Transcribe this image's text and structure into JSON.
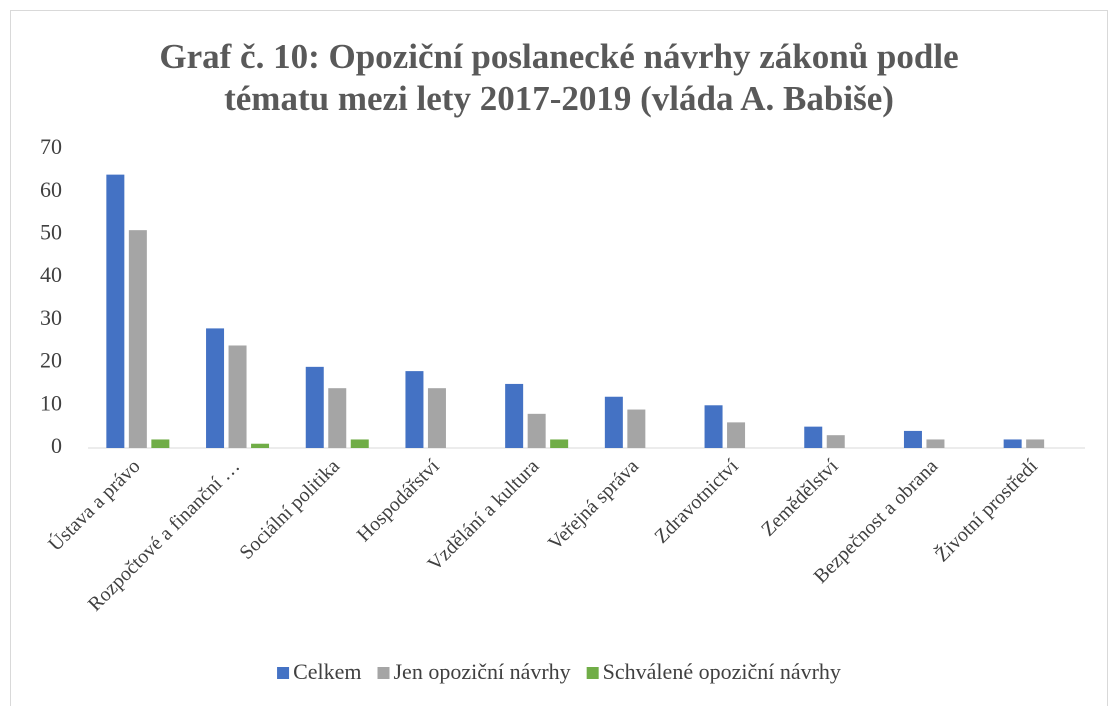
{
  "chart_data": {
    "type": "bar",
    "title": "Graf č. 10: Opoziční poslanecké návrhy zákonů podle tématu mezi lety 2017-2019 (vláda A. Babiše)",
    "categories": [
      "Ústava a právo",
      "Rozpočtové a finanční …",
      "Sociální politika",
      "Hospodářství",
      "Vzdělání a kultura",
      "Veřejná správa",
      "Zdravotnictví",
      "Zemědělství",
      "Bezpečnost a obrana",
      "Životní prostředí"
    ],
    "series": [
      {
        "name": "Celkem",
        "color": "#4472c4",
        "values": [
          64,
          28,
          19,
          18,
          15,
          12,
          10,
          5,
          4,
          2
        ]
      },
      {
        "name": "Jen opoziční návrhy",
        "color": "#a5a5a5",
        "values": [
          51,
          24,
          14,
          14,
          8,
          9,
          6,
          3,
          2,
          2
        ]
      },
      {
        "name": "Schválené opoziční návrhy",
        "color": "#70ad47",
        "values": [
          2,
          1,
          2,
          0,
          2,
          0,
          0,
          0,
          0,
          0
        ]
      }
    ],
    "ylim": [
      0,
      70
    ],
    "yticks": [
      0,
      10,
      20,
      30,
      40,
      50,
      60,
      70
    ],
    "grid": false,
    "legend": "bottom"
  }
}
